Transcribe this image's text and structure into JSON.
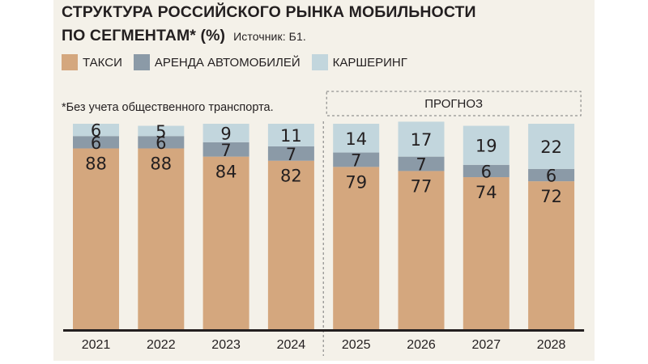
{
  "header": {
    "title_line1": "СТРУКТУРА РОССИЙСКОГО РЫНКА МОБИЛЬНОСТИ",
    "title_line2": "ПО СЕГМЕНТАМ* (%)",
    "source": "Источник: Б1."
  },
  "legend": [
    {
      "label": "ТАКСИ",
      "color": "#d4a77e"
    },
    {
      "label": "АРЕНДА АВТОМОБИЛЕЙ",
      "color": "#8b9aa7"
    },
    {
      "label": "КАРШЕРИНГ",
      "color": "#c2d6dd"
    }
  ],
  "footnote": "*Без учета общественного транспорта.",
  "forecast_label": "ПРОГНОЗ",
  "chart_data": {
    "type": "bar",
    "stacked": true,
    "categories": [
      "2021",
      "2022",
      "2023",
      "2024",
      "2025",
      "2026",
      "2027",
      "2028"
    ],
    "series": [
      {
        "name": "ТАКСИ",
        "color": "#d4a77e",
        "values": [
          88,
          88,
          84,
          82,
          79,
          77,
          74,
          72
        ]
      },
      {
        "name": "АРЕНДА АВТОМОБИЛЕЙ",
        "color": "#8b9aa7",
        "values": [
          6,
          6,
          7,
          7,
          7,
          7,
          6,
          6
        ]
      },
      {
        "name": "КАРШЕРИНГ",
        "color": "#c2d6dd",
        "values": [
          6,
          5,
          9,
          11,
          14,
          17,
          19,
          22
        ]
      }
    ],
    "ylim": [
      0,
      100
    ],
    "forecast_from": "2025",
    "grid": false
  }
}
